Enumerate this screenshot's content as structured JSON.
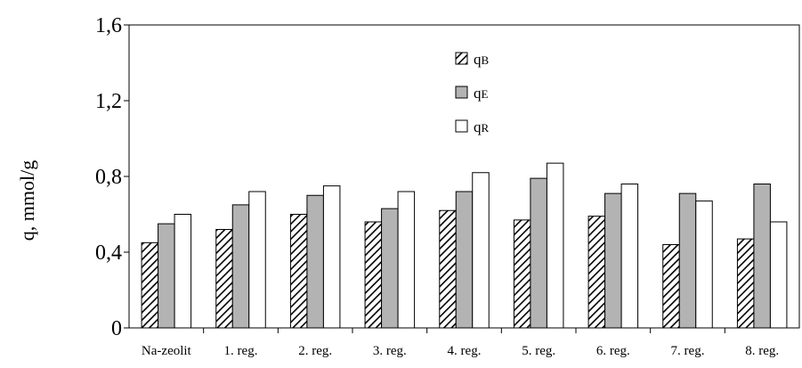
{
  "chart_data": {
    "type": "bar",
    "title": "",
    "xlabel": "",
    "ylabel": "q, mmol/g",
    "ylim": [
      0,
      1.6
    ],
    "yticks": [
      "0",
      "0,4",
      "0,8",
      "1,2",
      "1,6"
    ],
    "ytick_values": [
      0,
      0.4,
      0.8,
      1.2,
      1.6
    ],
    "grid": false,
    "legend_position": "top-center",
    "categories": [
      "Na-zeolit",
      "1. reg.",
      "2. reg.",
      "3. reg.",
      "4. reg.",
      "5. reg.",
      "6. reg.",
      "7. reg.",
      "8. reg."
    ],
    "series": [
      {
        "name": "qB",
        "base": "q",
        "sub": "B",
        "pattern": "hatched",
        "color": "#000000",
        "values": [
          0.45,
          0.52,
          0.6,
          0.56,
          0.62,
          0.57,
          0.59,
          0.44,
          0.47
        ]
      },
      {
        "name": "qE",
        "base": "q",
        "sub": "E",
        "pattern": "solid",
        "color": "#b3b3b3",
        "values": [
          0.55,
          0.65,
          0.7,
          0.63,
          0.72,
          0.79,
          0.71,
          0.71,
          0.76
        ]
      },
      {
        "name": "qR",
        "base": "q",
        "sub": "R",
        "pattern": "solid",
        "color": "#ffffff",
        "values": [
          0.6,
          0.72,
          0.75,
          0.72,
          0.82,
          0.87,
          0.76,
          0.67,
          0.56
        ]
      }
    ]
  }
}
